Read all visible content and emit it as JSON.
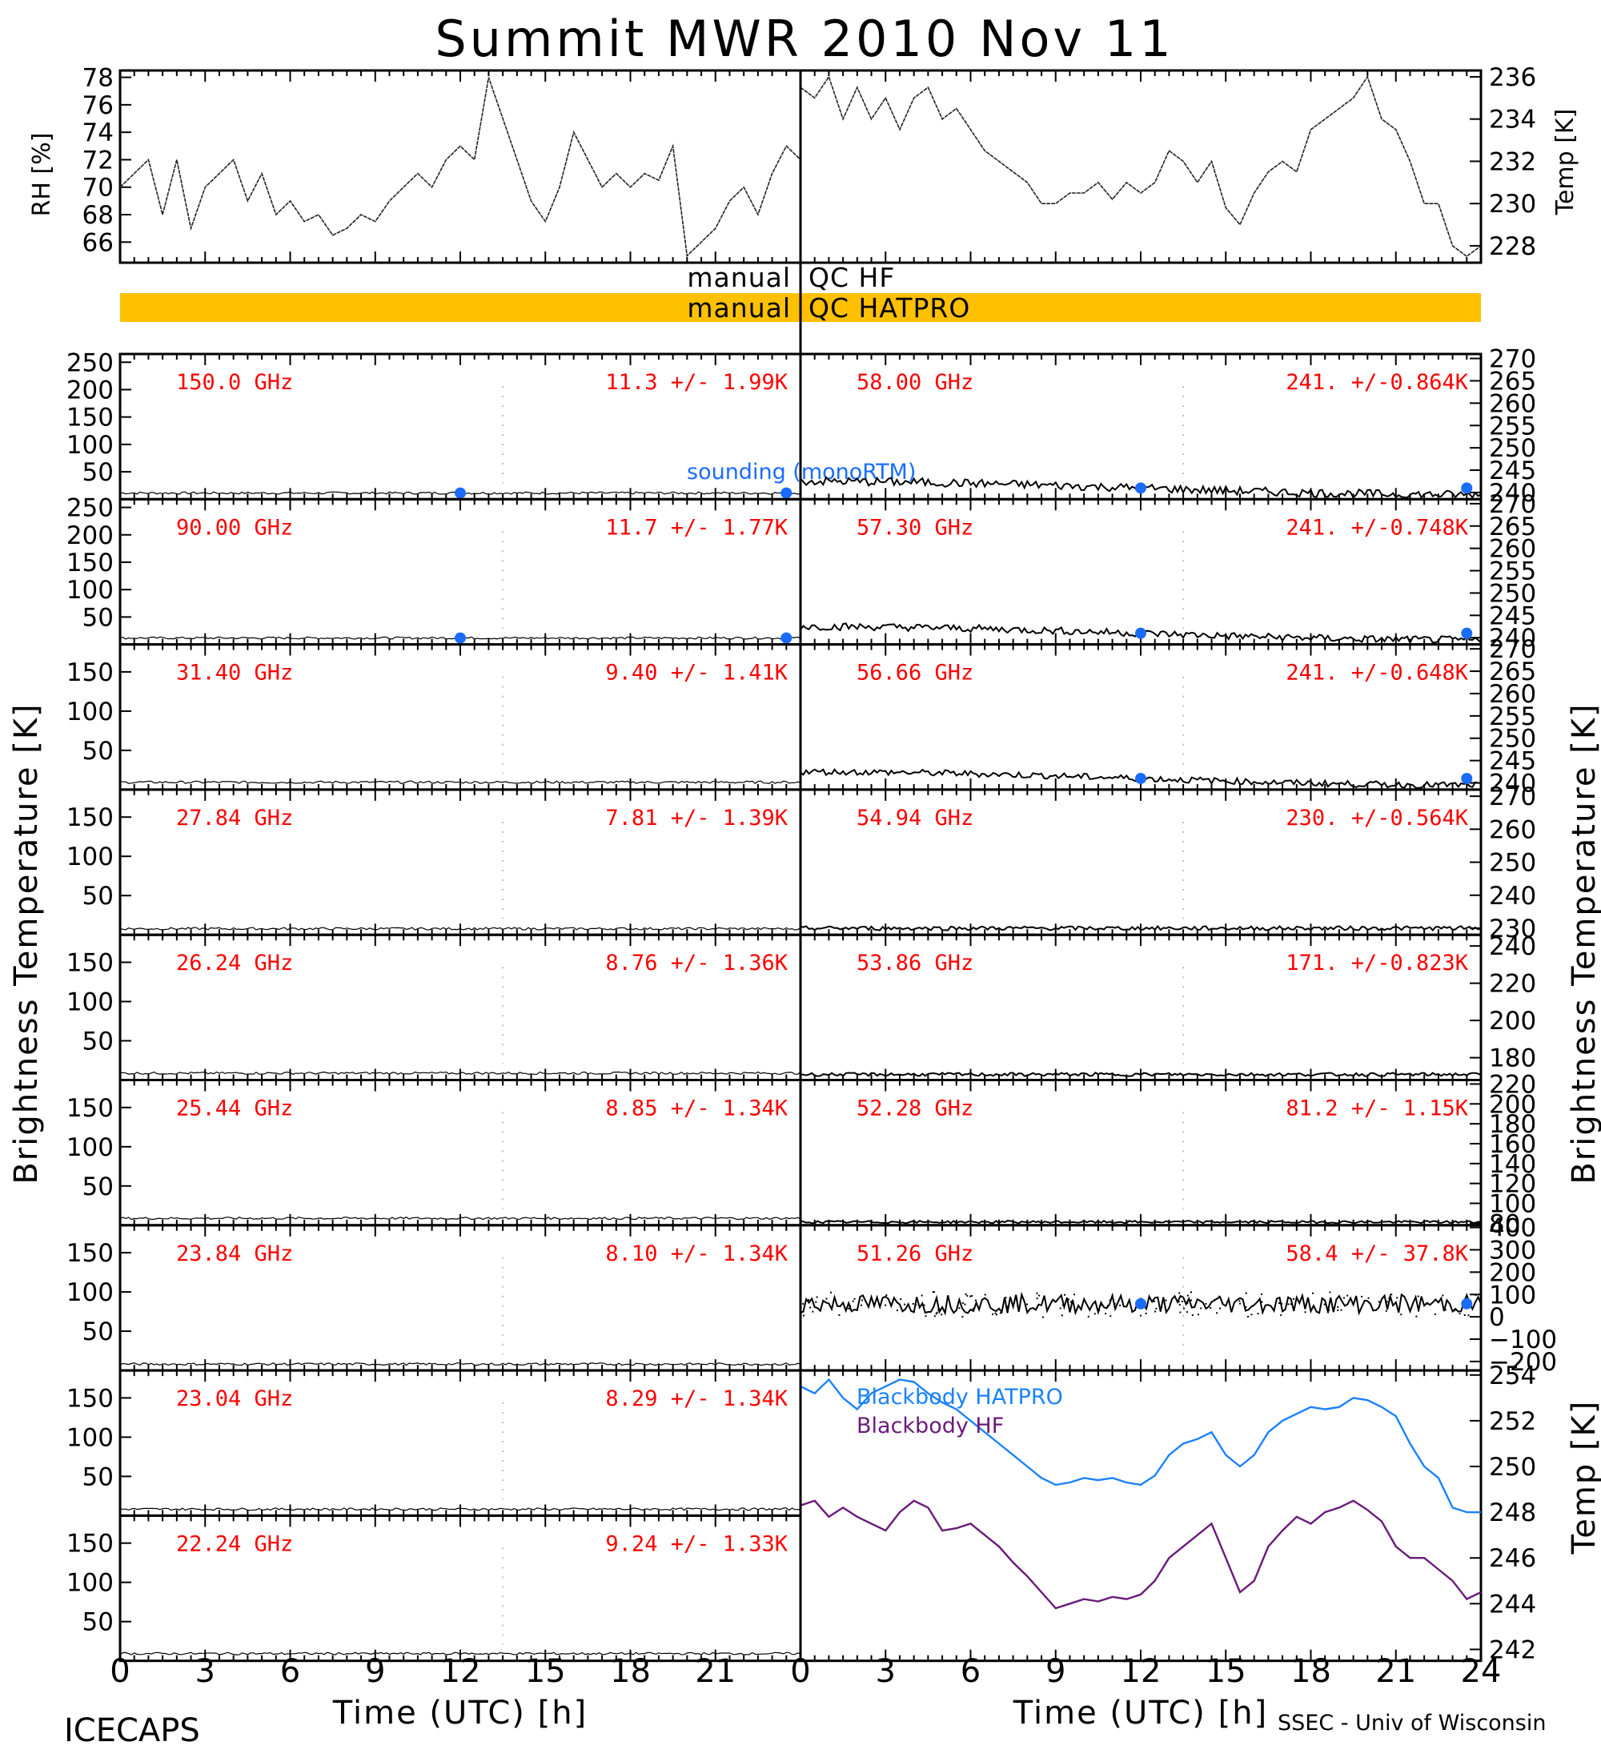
{
  "title": "Summit MWR 2010 Nov 11",
  "colors": {
    "channel_label": "#ff0000",
    "sounding": "#1a6cff",
    "qc_bar": "#ffc000",
    "blackbody_hatpro": "#1a82ff",
    "blackbody_hf": "#6a1a7a"
  },
  "top": {
    "rh_label": "RH [%]",
    "temp_label": "Temp [K]",
    "rh_ticks": [
      "66",
      "68",
      "70",
      "72",
      "74",
      "76",
      "78"
    ],
    "temp_ticks": [
      "228",
      "230",
      "232",
      "234",
      "236"
    ]
  },
  "qc": {
    "hf_left": "manual",
    "hf_right": "QC HF",
    "hatpro_left": "manual",
    "hatpro_right": "QC HATPRO"
  },
  "left_axis_label": "Brightness Temperature [K]",
  "right_axis_label": "Brightness Temperature [K]",
  "bb_axis_label": "Temp [K]",
  "sounding_label": "sounding (monoRTM)",
  "legend": {
    "hatpro": "Blackbody HATPRO",
    "hf": "Blackbody HF"
  },
  "x_axis": {
    "label": "Time (UTC) [h]",
    "ticks": [
      "0",
      "3",
      "6",
      "9",
      "12",
      "15",
      "18",
      "21"
    ],
    "ticks_right": [
      "0",
      "3",
      "6",
      "9",
      "12",
      "15",
      "18",
      "21",
      "24"
    ]
  },
  "credits": {
    "left": "ICECAPS",
    "right": "SSEC - Univ of Wisconsin"
  },
  "chart_data": {
    "type": "line",
    "x_range_hours": [
      0,
      24
    ],
    "top_panels": [
      {
        "name": "RH",
        "ylim": [
          64.5,
          78.5
        ],
        "x": [
          0,
          0.5,
          1,
          1.5,
          2,
          2.5,
          3,
          3.5,
          4,
          4.5,
          5,
          5.5,
          6,
          6.5,
          7,
          7.5,
          8,
          8.5,
          9,
          9.5,
          10,
          10.5,
          11,
          11.5,
          12,
          12.5,
          13,
          13.5,
          14,
          14.5,
          15,
          15.5,
          16,
          16.5,
          17,
          17.5,
          18,
          18.5,
          19,
          19.5,
          20,
          20.5,
          21,
          21.5,
          22,
          22.5,
          23,
          23.5,
          24
        ],
        "y": [
          70,
          71,
          72,
          68,
          72,
          67,
          70,
          71,
          72,
          69,
          71,
          68,
          69,
          67.5,
          68,
          66.5,
          67,
          68,
          67.5,
          69,
          70,
          71,
          70,
          72,
          73,
          72,
          78,
          75,
          72,
          69,
          67.5,
          70,
          74,
          72,
          70,
          71,
          70,
          71,
          70.5,
          73,
          65,
          66,
          67,
          69,
          70,
          68,
          71,
          73,
          72
        ]
      },
      {
        "name": "Temp",
        "ylim": [
          227.2,
          236.3
        ],
        "x": [
          0,
          0.5,
          1,
          1.5,
          2,
          2.5,
          3,
          3.5,
          4,
          4.5,
          5,
          5.5,
          6,
          6.5,
          7,
          7.5,
          8,
          8.5,
          9,
          9.5,
          10,
          10.5,
          11,
          11.5,
          12,
          12.5,
          13,
          13.5,
          14,
          14.5,
          15,
          15.5,
          16,
          16.5,
          17,
          17.5,
          18,
          18.5,
          19,
          19.5,
          20,
          20.5,
          21,
          21.5,
          22,
          22.5,
          23,
          23.5,
          24
        ],
        "y": [
          235.5,
          235,
          236,
          234,
          235.5,
          234,
          235,
          233.5,
          235,
          235.5,
          234,
          234.5,
          233.5,
          232.5,
          232,
          231.5,
          231,
          230,
          230,
          230.5,
          230.5,
          231,
          230.2,
          231,
          230.5,
          231,
          232.5,
          232,
          231,
          232,
          229.8,
          229,
          230.5,
          231.5,
          232,
          231.5,
          233.5,
          234,
          234.5,
          235,
          236,
          234,
          233.5,
          232,
          230,
          230,
          228,
          227.5,
          228
        ]
      }
    ],
    "channels_left": [
      {
        "freq": "150.0 GHz",
        "stats": "11.3 +/-  1.99K",
        "ylim": [
          0,
          265
        ],
        "ticks": [
          "50",
          "100",
          "150",
          "200",
          "250"
        ],
        "tb": 11.3,
        "std": 1.99,
        "sounding": [
          12,
          23.5
        ]
      },
      {
        "freq": "90.00 GHz",
        "stats": "11.7 +/-  1.77K",
        "ylim": [
          0,
          265
        ],
        "ticks": [
          "50",
          "100",
          "150",
          "200",
          "250"
        ],
        "tb": 11.7,
        "std": 1.77,
        "sounding": [
          12,
          23.5
        ]
      },
      {
        "freq": "31.40 GHz",
        "stats": "9.40 +/- 1.41K",
        "ylim": [
          0,
          185
        ],
        "ticks": [
          "50",
          "100",
          "150"
        ],
        "tb": 9.4,
        "std": 1.41,
        "sounding": []
      },
      {
        "freq": "27.84 GHz",
        "stats": "7.81 +/- 1.39K",
        "ylim": [
          0,
          185
        ],
        "ticks": [
          "50",
          "100",
          "150"
        ],
        "tb": 7.81,
        "std": 1.39,
        "sounding": []
      },
      {
        "freq": "26.24 GHz",
        "stats": "8.76 +/- 1.36K",
        "ylim": [
          0,
          185
        ],
        "ticks": [
          "50",
          "100",
          "150"
        ],
        "tb": 8.76,
        "std": 1.36,
        "sounding": []
      },
      {
        "freq": "25.44 GHz",
        "stats": "8.85 +/- 1.34K",
        "ylim": [
          0,
          185
        ],
        "ticks": [
          "50",
          "100",
          "150"
        ],
        "tb": 8.85,
        "std": 1.34,
        "sounding": []
      },
      {
        "freq": "23.84 GHz",
        "stats": "8.10 +/- 1.34K",
        "ylim": [
          0,
          185
        ],
        "ticks": [
          "50",
          "100",
          "150"
        ],
        "tb": 8.1,
        "std": 1.34,
        "sounding": []
      },
      {
        "freq": "23.04 GHz",
        "stats": "8.29 +/- 1.34K",
        "ylim": [
          0,
          185
        ],
        "ticks": [
          "50",
          "100",
          "150"
        ],
        "tb": 8.29,
        "std": 1.34,
        "sounding": []
      },
      {
        "freq": "22.24 GHz",
        "stats": "9.24 +/- 1.33K",
        "ylim": [
          0,
          185
        ],
        "ticks": [
          "50",
          "100",
          "150"
        ],
        "tb": 9.24,
        "std": 1.33,
        "sounding": []
      }
    ],
    "channels_right": [
      {
        "freq": "58.00 GHz",
        "stats": "241. +/-0.864K",
        "ylim": [
          238.5,
          271
        ],
        "ticks": [
          "240",
          "245",
          "250",
          "255",
          "260",
          "265",
          "270"
        ],
        "tb": 241.0,
        "std": 0.864,
        "sounding": [
          12,
          23.5
        ]
      },
      {
        "freq": "57.30 GHz",
        "stats": "241. +/-0.748K",
        "ylim": [
          238.5,
          271
        ],
        "ticks": [
          "240",
          "245",
          "250",
          "255",
          "260",
          "265",
          "270"
        ],
        "tb": 241.0,
        "std": 0.748,
        "sounding": [
          12,
          23.5
        ]
      },
      {
        "freq": "56.66 GHz",
        "stats": "241. +/-0.648K",
        "ylim": [
          238.5,
          271
        ],
        "ticks": [
          "240",
          "245",
          "250",
          "255",
          "260",
          "265",
          "270"
        ],
        "tb": 241.0,
        "std": 0.648,
        "sounding": [
          12,
          23.5
        ]
      },
      {
        "freq": "54.94 GHz",
        "stats": "230. +/-0.564K",
        "ylim": [
          228,
          272
        ],
        "ticks": [
          "230",
          "240",
          "250",
          "260",
          "270"
        ],
        "tb": 230.0,
        "std": 0.564,
        "sounding": []
      },
      {
        "freq": "53.86 GHz",
        "stats": "171. +/-0.823K",
        "ylim": [
          168,
          246
        ],
        "ticks": [
          "180",
          "200",
          "220",
          "240"
        ],
        "tb": 171.0,
        "std": 0.823,
        "sounding": []
      },
      {
        "freq": "52.28 GHz",
        "stats": "81.2 +/- 1.15K",
        "ylim": [
          78,
          224
        ],
        "ticks": [
          "80",
          "100",
          "120",
          "140",
          "160",
          "180",
          "200",
          "220"
        ],
        "tb": 81.2,
        "std": 1.15,
        "sounding": []
      },
      {
        "freq": "51.26 GHz",
        "stats": "58.4 +/- 37.8K",
        "ylim": [
          -240,
          410
        ],
        "ticks": [
          "−200",
          "−100",
          "0",
          "100",
          "200",
          "300",
          "400"
        ],
        "tb": 58.4,
        "std": 37.8,
        "sounding": [
          12,
          23.5
        ]
      }
    ],
    "blackbody": {
      "ylim": [
        241.5,
        254.2
      ],
      "ticks": [
        "242",
        "244",
        "246",
        "248",
        "250",
        "252",
        "254"
      ],
      "x": [
        0,
        0.5,
        1,
        1.5,
        2,
        2.5,
        3,
        3.5,
        4,
        4.5,
        5,
        5.5,
        6,
        6.5,
        7,
        7.5,
        8,
        8.5,
        9,
        9.5,
        10,
        10.5,
        11,
        11.5,
        12,
        12.5,
        13,
        13.5,
        14,
        14.5,
        15,
        15.5,
        16,
        16.5,
        17,
        17.5,
        18,
        18.5,
        19,
        19.5,
        20,
        20.5,
        21,
        21.5,
        22,
        22.5,
        23,
        23.5,
        24
      ],
      "hatpro": [
        253.5,
        253.2,
        253.8,
        253,
        252.5,
        253.2,
        253.5,
        253.8,
        253.7,
        253.2,
        252.8,
        252.5,
        252,
        251.5,
        251,
        250.5,
        250,
        249.5,
        249.2,
        249.3,
        249.5,
        249.4,
        249.5,
        249.3,
        249.2,
        249.6,
        250.5,
        251,
        251.2,
        251.5,
        250.5,
        250,
        250.5,
        251.5,
        252,
        252.3,
        252.6,
        252.5,
        252.6,
        253,
        252.9,
        252.6,
        252.2,
        251,
        250,
        249.5,
        248.2,
        248,
        248
      ],
      "hf": [
        248.3,
        248.5,
        247.8,
        248.2,
        247.8,
        247.5,
        247.2,
        248,
        248.5,
        248.2,
        247.2,
        247.3,
        247.5,
        247,
        246.5,
        245.8,
        245.2,
        244.5,
        243.8,
        244,
        244.2,
        244.1,
        244.3,
        244.2,
        244.4,
        245,
        246,
        246.5,
        247,
        247.5,
        246,
        244.5,
        245,
        246.5,
        247.2,
        247.8,
        247.5,
        248,
        248.2,
        248.5,
        248.1,
        247.6,
        246.5,
        246,
        246,
        245.5,
        245,
        244.2,
        244.5
      ]
    }
  }
}
